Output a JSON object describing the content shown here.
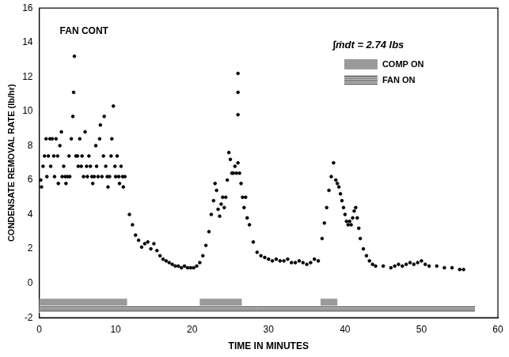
{
  "chart_data": {
    "type": "scatter",
    "x_label": "TIME IN MINUTES",
    "y_label": "CONDENSATE REMOVAL RATE (lb/hr)",
    "annotations": [
      "FAN CONT",
      "∫ṁdt = 2.74 lbs"
    ],
    "x": [
      0.2,
      0.3,
      0.5,
      0.7,
      0.9,
      1.0,
      1.2,
      1.4,
      1.5,
      1.7,
      1.9,
      2.0,
      2.2,
      2.4,
      2.5,
      2.7,
      2.9,
      3.0,
      3.2,
      3.4,
      3.5,
      3.7,
      3.9,
      4.0,
      4.2,
      4.4,
      4.5,
      4.6,
      4.8,
      5.0,
      5.1,
      5.3,
      5.5,
      5.6,
      5.8,
      6.0,
      6.2,
      6.3,
      6.5,
      6.7,
      6.9,
      7.0,
      7.2,
      7.4,
      7.5,
      7.7,
      7.9,
      8.0,
      8.2,
      8.4,
      8.5,
      8.7,
      8.9,
      9.0,
      9.2,
      9.4,
      9.5,
      9.7,
      9.9,
      10.0,
      10.2,
      10.4,
      10.5,
      10.7,
      10.9,
      11.0,
      11.2,
      11.8,
      12.2,
      12.6,
      13.0,
      13.4,
      13.8,
      14.2,
      14.6,
      15.0,
      15.4,
      15.8,
      16.2,
      16.6,
      17.0,
      17.4,
      17.8,
      18.2,
      18.6,
      19.0,
      19.4,
      19.8,
      20.2,
      20.6,
      21.0,
      21.4,
      21.8,
      22.2,
      22.5,
      22.8,
      23.0,
      23.2,
      23.4,
      23.6,
      23.8,
      24.0,
      24.2,
      24.4,
      24.6,
      24.8,
      25.0,
      25.2,
      25.4,
      25.6,
      25.8,
      26.0,
      26.0,
      26.0,
      26.0,
      26.2,
      26.4,
      26.6,
      26.8,
      27.0,
      27.2,
      27.5,
      28.0,
      28.5,
      29.0,
      29.5,
      30.0,
      30.5,
      31.0,
      31.5,
      32.0,
      32.5,
      33.0,
      33.5,
      34.0,
      34.5,
      35.0,
      35.5,
      36.0,
      36.5,
      37.0,
      37.3,
      37.6,
      37.9,
      38.2,
      38.5,
      38.8,
      39.0,
      39.2,
      39.4,
      39.6,
      39.8,
      40.0,
      40.2,
      40.4,
      40.6,
      40.8,
      41.0,
      41.2,
      41.4,
      41.6,
      41.8,
      42.0,
      42.4,
      42.8,
      43.2,
      43.6,
      44.0,
      45.0,
      46.0,
      46.5,
      47.0,
      47.5,
      48.0,
      48.5,
      49.0,
      49.5,
      50.0,
      50.5,
      51.0,
      52.0,
      53.0,
      54.0,
      55.0,
      55.5
    ],
    "values": [
      6.0,
      5.6,
      6.8,
      7.4,
      8.4,
      6.2,
      7.4,
      8.4,
      6.8,
      8.4,
      7.4,
      6.2,
      8.4,
      7.4,
      5.8,
      8.0,
      8.8,
      6.2,
      6.8,
      6.2,
      5.8,
      6.2,
      7.4,
      6.2,
      8.4,
      9.7,
      11.1,
      13.2,
      7.4,
      7.4,
      6.8,
      8.4,
      6.8,
      7.4,
      6.2,
      8.8,
      6.8,
      6.2,
      7.4,
      6.8,
      6.2,
      5.8,
      6.2,
      8.0,
      6.8,
      6.2,
      8.4,
      9.2,
      6.2,
      7.4,
      9.7,
      6.8,
      6.2,
      5.6,
      6.2,
      7.4,
      8.4,
      10.3,
      6.8,
      6.2,
      7.4,
      6.2,
      5.8,
      6.8,
      6.2,
      5.6,
      6.2,
      4.0,
      3.4,
      2.8,
      2.5,
      2.1,
      2.3,
      2.4,
      2.0,
      2.3,
      1.9,
      1.6,
      1.4,
      1.3,
      1.2,
      1.1,
      1.0,
      1.0,
      0.9,
      1.0,
      0.9,
      0.9,
      0.9,
      1.0,
      1.2,
      1.6,
      2.2,
      3.0,
      4.0,
      4.8,
      5.8,
      5.4,
      4.3,
      3.9,
      4.6,
      5.0,
      4.4,
      5.0,
      6.0,
      7.6,
      7.2,
      6.4,
      6.4,
      6.8,
      6.4,
      7.0,
      9.8,
      11.1,
      12.2,
      6.4,
      5.8,
      5.0,
      4.4,
      5.0,
      3.8,
      3.4,
      2.4,
      1.8,
      1.6,
      1.5,
      1.4,
      1.3,
      1.4,
      1.3,
      1.3,
      1.4,
      1.2,
      1.2,
      1.3,
      1.2,
      1.1,
      1.2,
      1.4,
      1.3,
      2.6,
      3.5,
      4.4,
      5.4,
      6.2,
      7.0,
      6.0,
      5.8,
      5.6,
      5.2,
      4.8,
      4.4,
      4.0,
      3.6,
      3.4,
      3.6,
      3.4,
      3.8,
      4.2,
      4.4,
      3.8,
      3.2,
      2.6,
      2.0,
      1.6,
      1.3,
      1.1,
      1.0,
      1.0,
      0.9,
      1.0,
      1.1,
      1.0,
      1.1,
      1.2,
      1.1,
      1.2,
      1.3,
      1.1,
      1.0,
      1.0,
      0.9,
      0.9,
      0.8,
      0.8
    ],
    "color": "#000000",
    "marker": "circle",
    "periods": [
      {
        "name": "COMP ON",
        "color": "#9a9a9a",
        "intervals": [
          [
            0,
            11.5
          ],
          [
            21,
            26.5
          ],
          [
            36.8,
            39
          ]
        ]
      },
      {
        "name": "FAN ON",
        "color": "#000000",
        "intervals": [
          [
            0,
            57
          ]
        ]
      }
    ],
    "xlim": [
      0,
      60
    ],
    "xticks": [
      0,
      10,
      20,
      30,
      40,
      50,
      60
    ],
    "ylim": [
      -2,
      16
    ],
    "yticks": [
      -2,
      0,
      2,
      4,
      6,
      8,
      10,
      12,
      14,
      16
    ],
    "grid": false
  }
}
